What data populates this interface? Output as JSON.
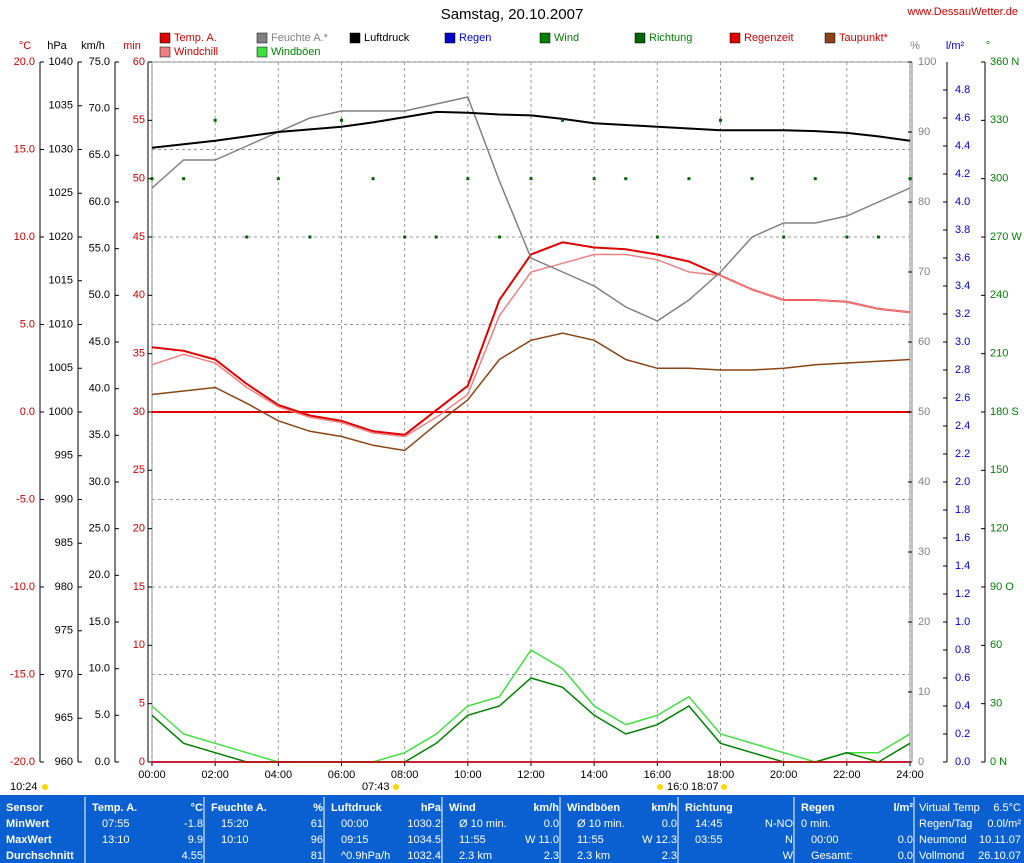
{
  "chart_data": {
    "type": "line",
    "title": "Samstag, 20.10.2007",
    "source": "www.DessauWetter.de",
    "x": [
      0,
      1,
      2,
      3,
      4,
      5,
      6,
      7,
      8,
      9,
      10,
      11,
      12,
      13,
      14,
      15,
      16,
      17,
      18,
      19,
      20,
      21,
      22,
      23,
      24
    ],
    "xlim": [
      0,
      24
    ],
    "xticks": [
      {
        "value": 0,
        "label": "00:00"
      },
      {
        "value": 2,
        "label": "02:00"
      },
      {
        "value": 4,
        "label": "04:00"
      },
      {
        "value": 6,
        "label": "06:00"
      },
      {
        "value": 8,
        "label": "08:00"
      },
      {
        "value": 10,
        "label": "10:00"
      },
      {
        "value": 12,
        "label": "12:00"
      },
      {
        "value": 14,
        "label": "14:00"
      },
      {
        "value": 16,
        "label": "16:00"
      },
      {
        "value": 18,
        "label": "18:00"
      },
      {
        "value": 20,
        "label": "20:00"
      },
      {
        "value": 22,
        "label": "22:00"
      },
      {
        "value": 24,
        "label": "24:00"
      }
    ],
    "grid": true,
    "axes": [
      {
        "unit": "°C",
        "color": "#cc0000",
        "lim": [
          -20,
          20
        ],
        "ticks": [
          {
            "value": 20,
            "label": "20.0"
          },
          {
            "value": 15,
            "label": "15.0"
          },
          {
            "value": 10,
            "label": "10.0"
          },
          {
            "value": 5,
            "label": "5.0"
          },
          {
            "value": 0,
            "label": "0.0"
          },
          {
            "value": -5,
            "label": "-5.0"
          },
          {
            "value": -10,
            "label": "-10.0"
          },
          {
            "value": -15,
            "label": "-15.0"
          },
          {
            "value": -20,
            "label": "-20.0"
          }
        ]
      },
      {
        "unit": "hPa",
        "color": "#000000",
        "lim": [
          960,
          1040
        ],
        "ticks": [
          1040,
          1035,
          1030,
          1025,
          1020,
          1015,
          1010,
          1005,
          1000,
          995,
          990,
          985,
          980,
          975,
          970,
          965,
          960
        ]
      },
      {
        "unit": "km/h",
        "color": "#000000",
        "lim": [
          0,
          75
        ],
        "ticks": [
          {
            "value": 75,
            "label": "75.0"
          },
          {
            "value": 70,
            "label": "70.0"
          },
          {
            "value": 65,
            "label": "65.0"
          },
          {
            "value": 60,
            "label": "60.0"
          },
          {
            "value": 55,
            "label": "55.0"
          },
          {
            "value": 50,
            "label": "50.0"
          },
          {
            "value": 45,
            "label": "45.0"
          },
          {
            "value": 40,
            "label": "40.0"
          },
          {
            "value": 35,
            "label": "35.0"
          },
          {
            "value": 30,
            "label": "30.0"
          },
          {
            "value": 25,
            "label": "25.0"
          },
          {
            "value": 20,
            "label": "20.0"
          },
          {
            "value": 15,
            "label": "15.0"
          },
          {
            "value": 10,
            "label": "10.0"
          },
          {
            "value": 5,
            "label": "5.0"
          },
          {
            "value": 0,
            "label": "0.0"
          }
        ]
      },
      {
        "unit": "min",
        "color": "#cc0000",
        "lim": [
          0,
          60
        ],
        "ticks": [
          60,
          55,
          50,
          45,
          40,
          35,
          30,
          25,
          20,
          15,
          10,
          5,
          0
        ]
      },
      {
        "unit": "%",
        "color": "#808080",
        "lim": [
          0,
          100
        ],
        "ticks": [
          100,
          90,
          80,
          70,
          60,
          50,
          40,
          30,
          20,
          10,
          0
        ]
      },
      {
        "unit": "l/m²",
        "color": "#0000cc",
        "lim": [
          0,
          5
        ],
        "ticks": [
          4.8,
          4.6,
          4.4,
          4.2,
          {
            "value": 4,
            "label": "4.0"
          },
          3.8,
          3.6,
          3.4,
          3.2,
          {
            "value": 3,
            "label": "3.0"
          },
          2.8,
          2.6,
          2.4,
          2.2,
          {
            "value": 2,
            "label": "2.0"
          },
          1.8,
          1.6,
          1.4,
          1.2,
          {
            "value": 1,
            "label": "1.0"
          },
          0.8,
          0.6,
          0.4,
          0.2,
          {
            "value": 0,
            "label": "0.0"
          }
        ]
      },
      {
        "unit": "°",
        "color": "#008000",
        "lim": [
          0,
          360
        ],
        "ticks": [
          {
            "value": 360,
            "label": "360 N"
          },
          330,
          300,
          {
            "value": 270,
            "label": "270 W"
          },
          240,
          210,
          {
            "value": 180,
            "label": "180 S"
          },
          150,
          120,
          {
            "value": 90,
            "label": "90 O"
          },
          60,
          30,
          {
            "value": 0,
            "label": "0 N"
          }
        ]
      }
    ],
    "series": [
      {
        "name": "Temp. A.",
        "color": "#e00000",
        "axis": 0,
        "mode": "line",
        "values": [
          3.7,
          3.5,
          3.0,
          1.6,
          0.4,
          -0.2,
          -0.5,
          -1.1,
          -1.3,
          0.1,
          1.5,
          6.4,
          9.0,
          9.7,
          9.4,
          9.3,
          9.0,
          8.6,
          7.8,
          7.0,
          6.4,
          6.4,
          6.3,
          5.9,
          5.7
        ]
      },
      {
        "name": "Windchill",
        "color": "#f08080",
        "axis": 0,
        "mode": "line",
        "values": [
          2.7,
          3.3,
          2.8,
          1.4,
          0.3,
          -0.3,
          -0.6,
          -1.2,
          -1.4,
          -0.3,
          1.0,
          5.5,
          8.0,
          8.5,
          9.0,
          9.0,
          8.7,
          8.0,
          7.8,
          7.0,
          6.4,
          6.4,
          6.3,
          5.9,
          5.7
        ]
      },
      {
        "name": "Feuchte A.*",
        "color": "#808080",
        "axis": 4,
        "mode": "line",
        "values": [
          82,
          86,
          86,
          88,
          90,
          92,
          93,
          93,
          93,
          94,
          95,
          83,
          72,
          70,
          68,
          65,
          63,
          66,
          70,
          75,
          77,
          77,
          78,
          80,
          82
        ]
      },
      {
        "name": "Windböen",
        "color": "#40e040",
        "axis": 2,
        "mode": "line",
        "values": [
          6,
          3,
          2,
          1,
          0,
          0,
          0,
          0,
          1,
          3,
          6,
          7,
          12,
          10,
          6,
          4,
          5,
          7,
          3,
          2,
          1,
          0,
          1,
          1,
          3
        ]
      },
      {
        "name": "Luftdruck",
        "color": "#000000",
        "axis": 1,
        "mode": "line",
        "values": [
          1030.2,
          1030.6,
          1031,
          1031.5,
          1032,
          1032.3,
          1032.6,
          1033.1,
          1033.7,
          1034.3,
          1034.2,
          1034,
          1033.9,
          1033.5,
          1033,
          1032.8,
          1032.6,
          1032.4,
          1032.2,
          1032.2,
          1032.2,
          1032.1,
          1031.9,
          1031.5,
          1031
        ]
      },
      {
        "name": "Regen",
        "color": "#0000cc",
        "axis": 5,
        "mode": "line",
        "values": [
          0,
          0,
          0,
          0,
          0,
          0,
          0,
          0,
          0,
          0,
          0,
          0,
          0,
          0,
          0,
          0,
          0,
          0,
          0,
          0,
          0,
          0,
          0,
          0,
          0
        ]
      },
      {
        "name": "Wind",
        "color": "#008000",
        "axis": 2,
        "mode": "line",
        "values": [
          5,
          2,
          1,
          0,
          0,
          0,
          0,
          0,
          0,
          2,
          5,
          6,
          9,
          8,
          5,
          3,
          4,
          6,
          2,
          1,
          0,
          0,
          1,
          0,
          2
        ]
      },
      {
        "name": "Richtung",
        "color": "#006400",
        "axis": 6,
        "mode": "markers",
        "values": [
          300,
          300,
          330,
          270,
          300,
          270,
          330,
          300,
          270,
          270,
          300,
          270,
          300,
          330,
          300,
          300,
          270,
          300,
          330,
          300,
          270,
          300,
          270,
          270,
          300
        ]
      },
      {
        "name": "Regenzeit",
        "color": "#e00000",
        "axis": 3,
        "mode": "line",
        "values": [
          0,
          0,
          0,
          0,
          0,
          0,
          0,
          0,
          0,
          0,
          0,
          0,
          0,
          0,
          0,
          0,
          0,
          0,
          0,
          0,
          0,
          0,
          0,
          0,
          0
        ]
      },
      {
        "name": "Taupunkt*",
        "color": "#8b4513",
        "axis": 0,
        "mode": "line",
        "values": [
          1.0,
          1.2,
          1.4,
          0.5,
          -0.5,
          -1.1,
          -1.4,
          -1.9,
          -2.2,
          -0.7,
          0.7,
          3.0,
          4.1,
          4.5,
          4.1,
          3.0,
          2.5,
          2.5,
          2.4,
          2.4,
          2.5,
          2.7,
          2.8,
          2.9,
          3.0
        ]
      }
    ],
    "annotations": [
      "10:24",
      "07:43",
      "16:0",
      "18:07"
    ]
  },
  "table": {
    "sensor": {
      "header": "Sensor",
      "rows": [
        "MinWert",
        "MaxWert",
        "Durchschnitt"
      ]
    },
    "columns": [
      {
        "name": "Temp. A.",
        "unit": "°C",
        "rows": [
          [
            "07:55",
            "-1.8"
          ],
          [
            "13:10",
            "9.9"
          ],
          [
            "4.55"
          ]
        ]
      },
      {
        "name": "Feuchte A.",
        "unit": "%",
        "rows": [
          [
            "15:20",
            "61"
          ],
          [
            "10:10",
            "96"
          ],
          [
            "81"
          ]
        ]
      },
      {
        "name": "Luftdruck",
        "unit": "hPa",
        "rows": [
          [
            "00:00",
            "1030.2"
          ],
          [
            "09:15",
            "1034.5"
          ],
          [
            "^0.9hPa/h",
            "1032.4"
          ]
        ]
      },
      {
        "name": "Wind",
        "unit": "km/h",
        "rows": [
          [
            "Ø 10 min.",
            "0.0"
          ],
          [
            "11:55",
            "W 11.0"
          ],
          [
            "2.3 km",
            "2.3"
          ]
        ]
      },
      {
        "name": "Windböen",
        "unit": "km/h",
        "rows": [
          [
            "Ø 10 min.",
            "0.0"
          ],
          [
            "11:55",
            "W 12.3"
          ],
          [
            "2.3 km",
            "2.3"
          ]
        ]
      },
      {
        "name": "Richtung",
        "rows": [
          [
            "14:45",
            "N-NO"
          ],
          [
            "03:55",
            "N"
          ],
          [
            "W"
          ]
        ]
      },
      {
        "name": "Regen",
        "unit": "l/m²",
        "rows": [
          [
            "0 min."
          ],
          [
            "00:00",
            "0.0"
          ],
          [
            "Gesamt:",
            "0.0"
          ]
        ]
      }
    ],
    "extra": [
      [
        "Virtual Temp",
        "6.5°C"
      ],
      [
        "Regen/Tag",
        "0.0l/m²"
      ],
      [
        "Neumond",
        "10.11.07"
      ],
      [
        "Vollmond",
        "26.10.07"
      ]
    ]
  }
}
